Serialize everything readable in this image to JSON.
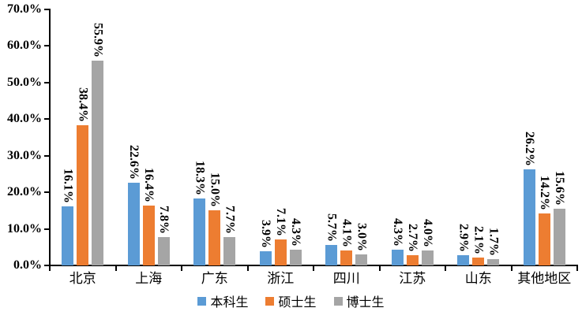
{
  "chart_data": {
    "type": "bar",
    "title": "",
    "xlabel": "",
    "ylabel": "",
    "categories": [
      "北京",
      "上海",
      "广东",
      "浙江",
      "四川",
      "江苏",
      "山东",
      "其他地区"
    ],
    "series": [
      {
        "name": "本科生",
        "color": "#5B9BD5",
        "values": [
          16.1,
          22.6,
          18.3,
          3.9,
          5.7,
          4.3,
          2.9,
          26.2
        ],
        "labels": [
          "16.1%",
          "22.6%",
          "18.3%",
          "3.9%",
          "5.7%",
          "4.3%",
          "2.9%",
          "26.2%"
        ]
      },
      {
        "name": "硕士生",
        "color": "#ED7D31",
        "values": [
          38.4,
          16.4,
          15.0,
          7.1,
          4.1,
          2.7,
          2.1,
          14.2
        ],
        "labels": [
          "38.4%",
          "16.4%",
          "15.0%",
          "7.1%",
          "4.1%",
          "2.7%",
          "2.1%",
          "14.2%"
        ]
      },
      {
        "name": "博士生",
        "color": "#A5A5A5",
        "values": [
          55.9,
          7.8,
          7.7,
          4.3,
          3.0,
          4.0,
          1.7,
          15.6
        ],
        "labels": [
          "55.9%",
          "7.8%",
          "7.7%",
          "4.3%",
          "3.0%",
          "4.0%",
          "1.7%",
          "15.6%"
        ]
      }
    ],
    "ylim": [
      0,
      70
    ],
    "ytick_step": 10,
    "ytick_labels": [
      "0.0%",
      "10.0%",
      "20.0%",
      "30.0%",
      "40.0%",
      "50.0%",
      "60.0%",
      "70.0%"
    ],
    "grid": false,
    "legend_position": "bottom",
    "data_label_rotation_deg": 90,
    "axis_color": "#000000",
    "background_color": "#ffffff"
  }
}
